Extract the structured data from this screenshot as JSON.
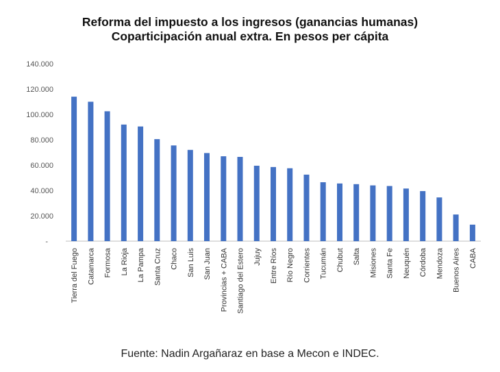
{
  "title_line1": "Reforma del impuesto a los ingresos (ganancias humanas)",
  "title_line2": "Coparticipación anual extra. En pesos per cápita",
  "source": "Fuente: Nadin Argañaraz en base a Mecon e INDEC.",
  "chart_data": {
    "type": "bar",
    "title": "Reforma del impuesto a los ingresos (ganancias humanas) Coparticipación anual extra. En pesos per cápita",
    "xlabel": "",
    "ylabel": "",
    "ylim": [
      0,
      140000
    ],
    "ytick_labels": [
      "-",
      "20.000",
      "40.000",
      "60.000",
      "80.000",
      "100.000",
      "120.000",
      "140.000"
    ],
    "grid": false,
    "bar_color": "#4472C4",
    "categories": [
      "Tierra del Fuego",
      "Catamarca",
      "Formosa",
      "La Rioja",
      "La Pampa",
      "Santa Cruz",
      "Chaco",
      "San Luis",
      "San Juan",
      "Provincias + CABA",
      "Santiago del Estero",
      "Jujuy",
      "Entre Ríos",
      "Río Negro",
      "Corrientes",
      "Tucumán",
      "Chubut",
      "Salta",
      "Misiones",
      "Santa Fe",
      "Neuquén",
      "Córdoba",
      "Mendoza",
      "Buenos Aires",
      "CABA"
    ],
    "values": [
      114000,
      110000,
      102500,
      92000,
      90500,
      80500,
      75500,
      72000,
      69500,
      67000,
      66500,
      59500,
      58500,
      57500,
      52500,
      46500,
      45500,
      45000,
      44000,
      43500,
      41500,
      39500,
      34500,
      21000,
      13000
    ]
  }
}
